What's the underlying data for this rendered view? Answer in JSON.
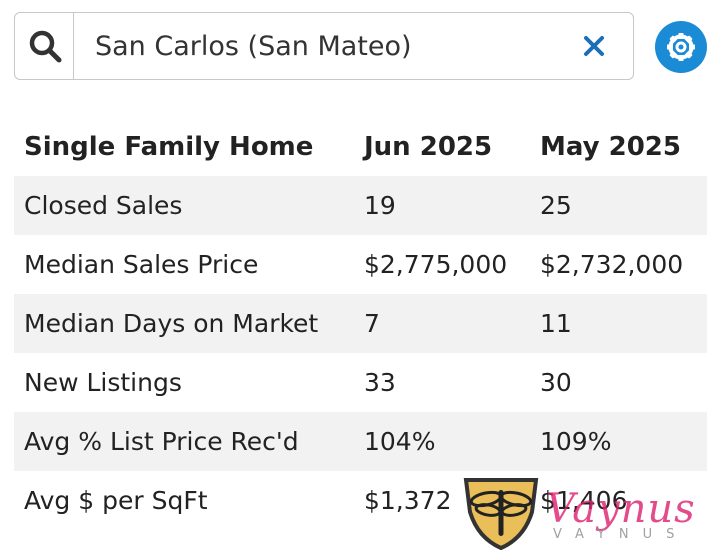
{
  "search": {
    "value": "San Carlos (San Mateo)",
    "icon": "search-icon",
    "clear_icon": "close-icon"
  },
  "settings": {
    "icon": "gear-icon",
    "color": "#1b8bd6"
  },
  "table": {
    "headers": [
      "Single Family Home",
      "Jun 2025",
      "May 2025"
    ],
    "rows": [
      [
        "Closed Sales",
        "19",
        "25"
      ],
      [
        "Median Sales Price",
        "$2,775,000",
        "$2,732,000"
      ],
      [
        "Median Days on Market",
        "7",
        "11"
      ],
      [
        "New Listings",
        "33",
        "30"
      ],
      [
        "Avg % List Price Rec'd",
        "104%",
        "109%"
      ],
      [
        "Avg $ per SqFt",
        "$1,372",
        "$1,406"
      ]
    ]
  },
  "logo": {
    "script": "Vaynus",
    "caption": "VAYNUS"
  },
  "colors": {
    "accent": "#1b8bd6",
    "stripe": "#f2f2f2",
    "logo_pink": "#dc1e6e",
    "logo_gold": "#e8b94a"
  }
}
